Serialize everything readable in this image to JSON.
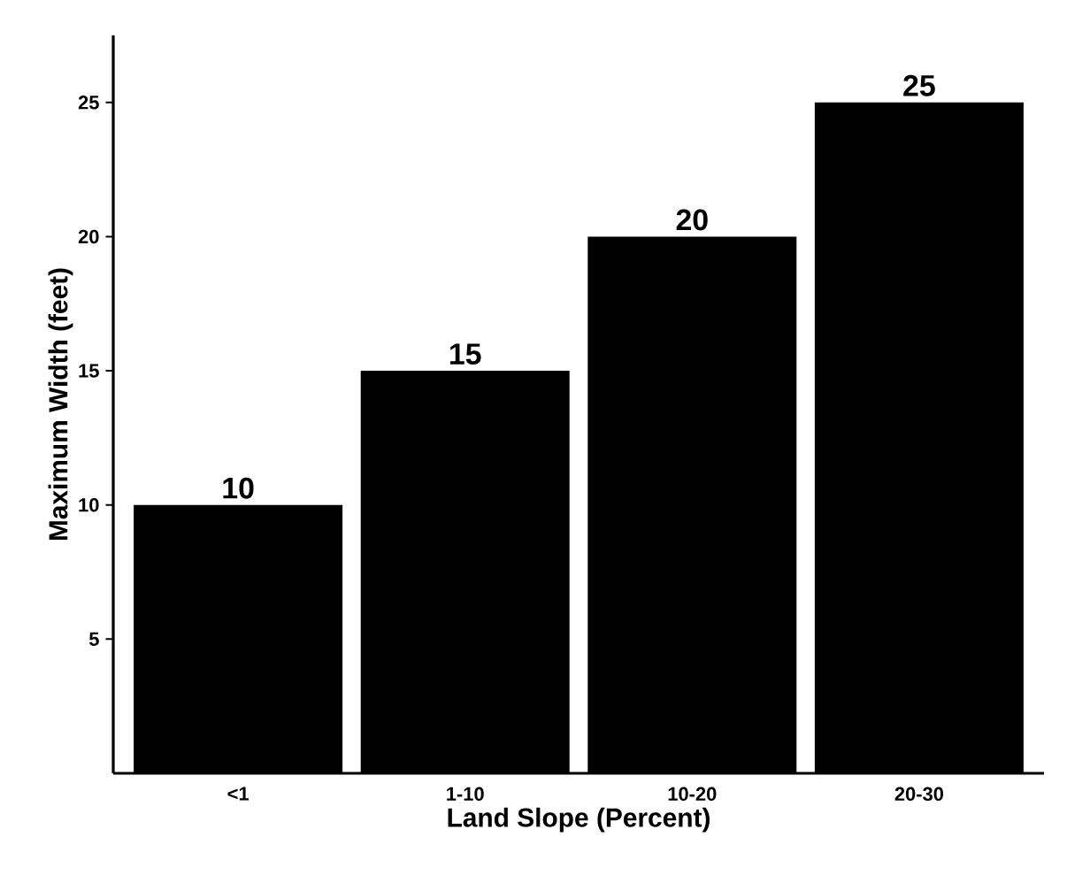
{
  "chart_data": {
    "type": "bar",
    "xlabel": "Land Slope (Percent)",
    "ylabel": "Maximum Width (feet)",
    "categories": [
      "<1",
      "1-10",
      "10-20",
      "20-30"
    ],
    "values": [
      10,
      15,
      20,
      25
    ],
    "color": "#000000",
    "ylim": [
      0,
      27.5
    ],
    "yticks": [
      5,
      10,
      15,
      20,
      25
    ],
    "data_labels": true
  }
}
